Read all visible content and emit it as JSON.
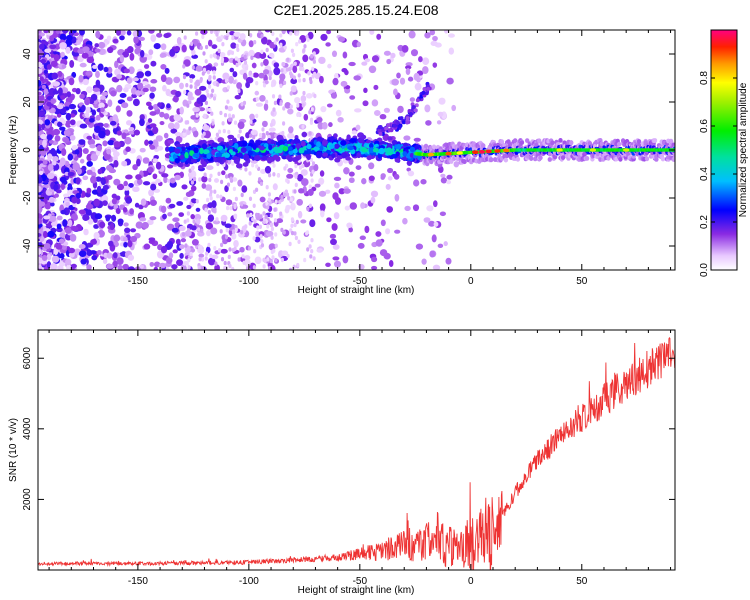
{
  "title": "C2E1.2025.285.15.24.E08",
  "chart_data": [
    {
      "type": "heatmap",
      "name": "spectrogram",
      "xlabel": "Height of straight line (km)",
      "ylabel": "Frequency (Hz)",
      "xlim": [
        -195,
        92
      ],
      "ylim": [
        -50,
        50
      ],
      "xticks": [
        -150,
        -100,
        -50,
        0,
        50
      ],
      "yticks": [
        -40,
        -20,
        0,
        20,
        40
      ],
      "description_series": [
        {
          "name": "carrier_ridge",
          "x": [
            -135,
            -100,
            -70,
            -50,
            -30,
            -20,
            0,
            20,
            50,
            92
          ],
          "y": [
            -2,
            0,
            1,
            1,
            -1,
            -2,
            -1,
            0,
            0,
            0
          ]
        },
        {
          "name": "sideband_arc",
          "x": [
            -40,
            -30,
            -25,
            -20,
            -18
          ],
          "y": [
            8,
            12,
            18,
            25,
            29
          ]
        }
      ],
      "colorbar": {
        "label": "Normalized spectral amplitude",
        "range": [
          0,
          1
        ],
        "ticks": [
          0.0,
          0.2,
          0.4,
          0.6,
          0.8
        ]
      }
    },
    {
      "type": "line",
      "name": "snr",
      "color": "#ee3333",
      "xlabel": "Height of straight line (km)",
      "ylabel": "SNR (10 * v/v)",
      "xlim": [
        -195,
        92
      ],
      "ylim": [
        0,
        6800
      ],
      "xticks": [
        -150,
        -100,
        -50,
        0,
        50
      ],
      "yticks": [
        2000,
        4000,
        6000
      ],
      "trend": {
        "x": [
          -195,
          -150,
          -120,
          -100,
          -80,
          -60,
          -50,
          -40,
          -30,
          -20,
          -10,
          0,
          10,
          20,
          30,
          40,
          50,
          60,
          70,
          80,
          92
        ],
        "y": [
          180,
          180,
          200,
          220,
          280,
          360,
          450,
          550,
          700,
          780,
          700,
          720,
          1000,
          2200,
          3100,
          3800,
          4300,
          4800,
          5300,
          5700,
          6100
        ]
      }
    }
  ]
}
